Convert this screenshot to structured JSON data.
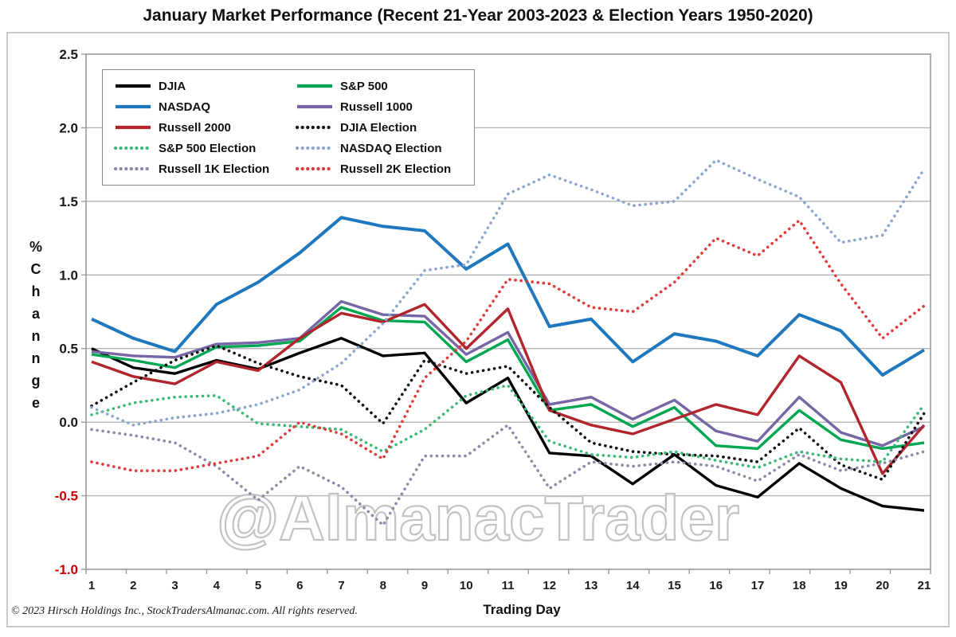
{
  "header": {
    "title": "January Market Performance (Recent 21-Year 2003-2023 & Election Years 1950-2020)"
  },
  "footer": {
    "text": "© 2023 Hirsch Holdings Inc., StockTradersAlmanac.com. All rights reserved."
  },
  "watermark": "@AlmanacTrader",
  "axes": {
    "xlabel": "Trading Day",
    "ylabel_stacked": [
      "%",
      "C",
      "h",
      "a",
      "n",
      "n",
      "g",
      "e"
    ],
    "yticks": [
      2.5,
      2.0,
      1.5,
      1.0,
      0.5,
      0.0,
      -0.5,
      -1.0
    ],
    "xticks": [
      1,
      2,
      3,
      4,
      5,
      6,
      7,
      8,
      9,
      10,
      11,
      12,
      13,
      14,
      15,
      16,
      17,
      18,
      19,
      20,
      21
    ],
    "positive_tick_color": "#1a1a1a",
    "negative_tick_color": "#cc0000",
    "grid_color": "#b3b3b3",
    "box_color": "#9a9a9a"
  },
  "legend": {
    "position": "top-left-inside",
    "columns": 2
  },
  "chart_data": {
    "type": "line",
    "title": "January Market Performance (Recent 21-Year 2003-2023 & Election Years 1950-2020)",
    "xlabel": "Trading Day",
    "ylabel": "% Change",
    "x": [
      1,
      2,
      3,
      4,
      5,
      6,
      7,
      8,
      9,
      10,
      11,
      12,
      13,
      14,
      15,
      16,
      17,
      18,
      19,
      20,
      21
    ],
    "xlim": [
      1,
      21
    ],
    "ylim": [
      -1.0,
      2.5
    ],
    "grid": true,
    "series": [
      {
        "name": "DJIA",
        "style": "solid",
        "color": "#000000",
        "width": 3.4,
        "values": [
          0.5,
          0.37,
          0.33,
          0.42,
          0.36,
          0.47,
          0.57,
          0.45,
          0.47,
          0.13,
          0.3,
          -0.21,
          -0.23,
          -0.42,
          -0.22,
          -0.43,
          -0.51,
          -0.28,
          -0.45,
          -0.57,
          -0.6
        ]
      },
      {
        "name": "S&P 500",
        "style": "solid",
        "color": "#00A651",
        "width": 3.4,
        "values": [
          0.46,
          0.42,
          0.37,
          0.51,
          0.52,
          0.55,
          0.78,
          0.69,
          0.68,
          0.41,
          0.56,
          0.08,
          0.12,
          -0.03,
          0.1,
          -0.16,
          -0.18,
          0.08,
          -0.12,
          -0.18,
          -0.14
        ]
      },
      {
        "name": "NASDAQ",
        "style": "solid",
        "color": "#1F78BE",
        "width": 4,
        "values": [
          0.7,
          0.57,
          0.48,
          0.8,
          0.95,
          1.15,
          1.39,
          1.33,
          1.3,
          1.04,
          1.21,
          0.65,
          0.7,
          0.41,
          0.6,
          0.55,
          0.45,
          0.73,
          0.62,
          0.32,
          0.49
        ]
      },
      {
        "name": "Russell 1000",
        "style": "solid",
        "color": "#7765A5",
        "width": 3.4,
        "values": [
          0.48,
          0.45,
          0.44,
          0.53,
          0.54,
          0.57,
          0.82,
          0.73,
          0.72,
          0.46,
          0.61,
          0.12,
          0.17,
          0.02,
          0.15,
          -0.06,
          -0.13,
          0.17,
          -0.07,
          -0.16,
          -0.03
        ]
      },
      {
        "name": "Russell 2000",
        "style": "solid",
        "color": "#B0262C",
        "width": 3.4,
        "values": [
          0.41,
          0.31,
          0.26,
          0.41,
          0.35,
          0.57,
          0.74,
          0.68,
          0.8,
          0.5,
          0.77,
          0.08,
          -0.02,
          -0.08,
          0.02,
          0.12,
          0.05,
          0.45,
          0.27,
          -0.35,
          -0.02
        ]
      },
      {
        "name": "DJIA Election",
        "style": "dotted",
        "color": "#111111",
        "width": 3.6,
        "values": [
          0.11,
          0.27,
          0.42,
          0.52,
          0.4,
          0.31,
          0.25,
          -0.01,
          0.42,
          0.33,
          0.38,
          0.1,
          -0.14,
          -0.2,
          -0.22,
          -0.23,
          -0.27,
          -0.04,
          -0.29,
          -0.39,
          0.06
        ]
      },
      {
        "name": "S&P 500 Election",
        "style": "dotted",
        "color": "#3CB878",
        "width": 3.6,
        "values": [
          0.05,
          0.13,
          0.17,
          0.18,
          -0.01,
          -0.03,
          -0.05,
          -0.2,
          -0.05,
          0.18,
          0.25,
          -0.13,
          -0.22,
          -0.24,
          -0.2,
          -0.26,
          -0.31,
          -0.2,
          -0.25,
          -0.27,
          0.12
        ]
      },
      {
        "name": "NASDAQ Election",
        "style": "dotted",
        "color": "#8CA5CC",
        "width": 3.6,
        "values": [
          0.1,
          -0.02,
          0.03,
          0.06,
          0.12,
          0.22,
          0.4,
          0.67,
          1.03,
          1.07,
          1.55,
          1.68,
          1.58,
          1.47,
          1.5,
          1.78,
          1.65,
          1.53,
          1.22,
          1.27,
          1.72
        ]
      },
      {
        "name": "Russell 1K Election",
        "style": "dotted",
        "color": "#8D89A6",
        "width": 3.6,
        "values": [
          -0.05,
          -0.09,
          -0.14,
          -0.3,
          -0.53,
          -0.3,
          -0.44,
          -0.7,
          -0.23,
          -0.23,
          -0.02,
          -0.45,
          -0.27,
          -0.3,
          -0.27,
          -0.3,
          -0.4,
          -0.22,
          -0.33,
          -0.28,
          -0.2
        ]
      },
      {
        "name": "Russell 2K Election",
        "style": "dotted",
        "color": "#E03A3A",
        "width": 3.6,
        "values": [
          -0.27,
          -0.33,
          -0.33,
          -0.28,
          -0.23,
          0.0,
          -0.08,
          -0.25,
          0.3,
          0.55,
          0.97,
          0.94,
          0.78,
          0.75,
          0.95,
          1.25,
          1.13,
          1.37,
          0.94,
          0.57,
          0.79
        ]
      }
    ],
    "legend_position": "top-left",
    "watermark": "@AlmanacTrader"
  }
}
